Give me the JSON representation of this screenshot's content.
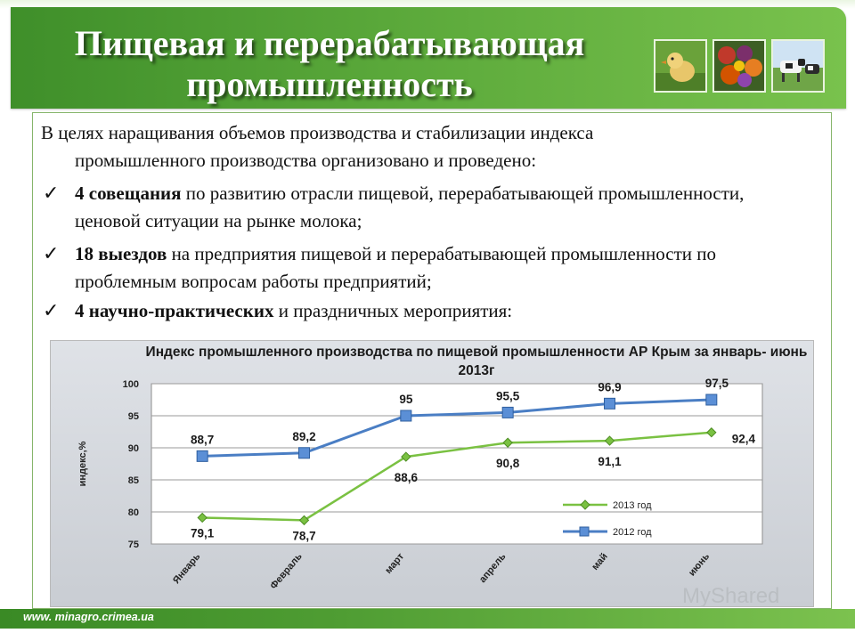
{
  "slide": {
    "title": "Пищевая и перерабатывающая промышленность",
    "intro_line1": "В целях наращивания объемов производства и стабилизации индекса",
    "intro_line2": "промышленного производства организовано и проведено:",
    "bullets": [
      {
        "bold": "4  совещания",
        "rest": " по развитию отрасли пищевой, перерабатывающей промышленности, ценовой ситуации на рынке молока;"
      },
      {
        "bold": "18 выездов",
        "rest": " на предприятия пищевой и перерабатывающей промышленности  по проблемным вопросам работы предприятий;"
      },
      {
        "bold": "4 научно-практических",
        "rest": " и праздничных мероприятия:"
      }
    ],
    "photos": [
      "chick-photo",
      "vegetables-photo",
      "cows-photo"
    ]
  },
  "footer": {
    "url": "www. minagro.crimea.ua"
  },
  "watermark": {
    "text": "MyShared"
  },
  "chart_data": {
    "type": "line",
    "title": "Индекс промышленного производства по пищевой промышленности АР Крым за январь- июнь 2013г",
    "ylabel": "индекс,%",
    "xlabel": "",
    "ylim": [
      75,
      100
    ],
    "yticks": [
      75,
      80,
      85,
      90,
      95,
      100
    ],
    "categories": [
      "январь",
      "февраль",
      "март",
      "апрель",
      "май",
      "июнь"
    ],
    "series": [
      {
        "name": "2013 год",
        "color": "#7ac142",
        "values": [
          79.1,
          78.7,
          88.6,
          90.8,
          91.1,
          92.4
        ],
        "labels": [
          "79,1",
          "78,7",
          "88,6",
          "90,8",
          "91,1",
          "92,4"
        ]
      },
      {
        "name": "2012 год",
        "color": "#4a7ec4",
        "values": [
          88.7,
          89.2,
          95,
          95.5,
          96.9,
          97.5
        ],
        "labels": [
          "88,7",
          "89,2",
          "95",
          "95,5",
          "96,9",
          "97,5"
        ]
      }
    ],
    "legend": "right",
    "grid": true
  }
}
